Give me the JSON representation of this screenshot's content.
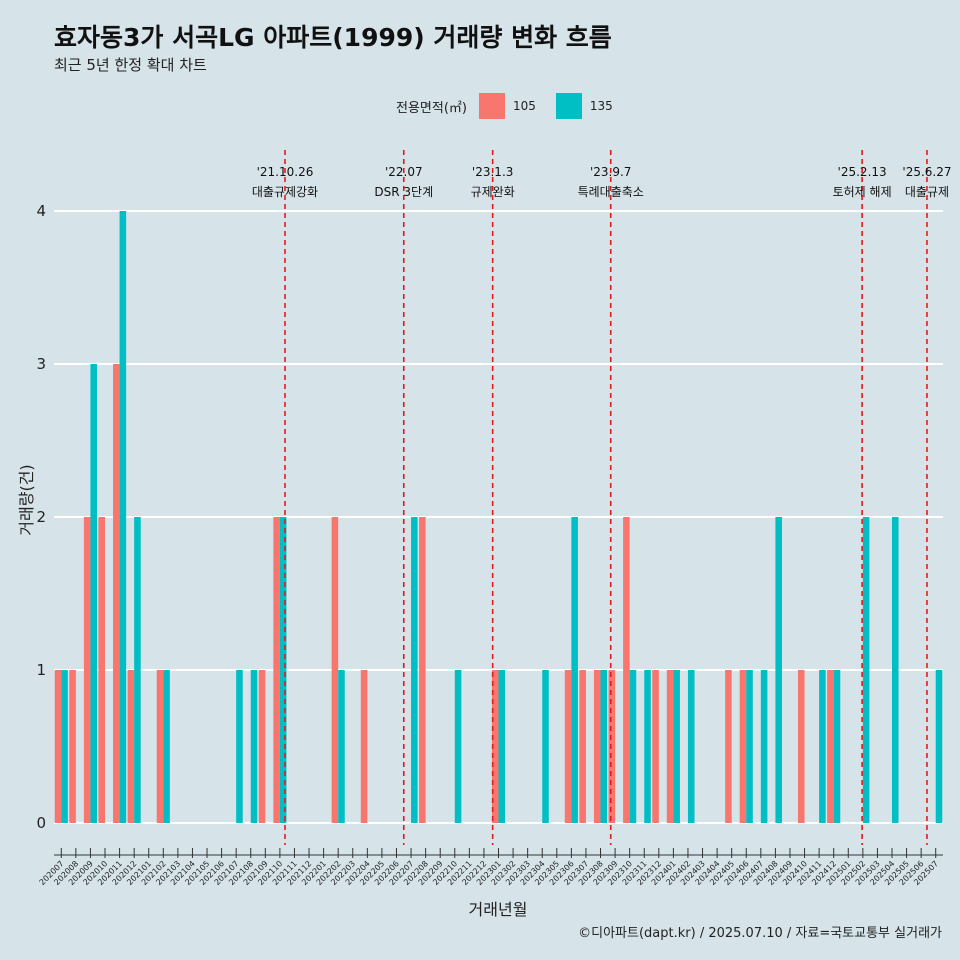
{
  "title": "효자동3가 서곡LG 아파트(1999) 거래량 변화 흐름",
  "subtitle": "최근 5년 한정 확대 차트",
  "caption": "©디아파트(dapt.kr) / 2025.07.10 / 자료=국토교통부 실거래가",
  "legend": {
    "title": "전용면적(㎡)",
    "items": [
      {
        "label": "105",
        "color": "#f8766d"
      },
      {
        "label": "135",
        "color": "#00bfc4"
      }
    ]
  },
  "chart_data": {
    "type": "bar",
    "xlabel": "거래년월",
    "ylabel": "거래량(건)",
    "ylim": [
      -0.2,
      4.3
    ],
    "yticks": [
      0,
      1,
      2,
      3,
      4
    ],
    "grid": true,
    "legend_position": "top",
    "categories": [
      "202007",
      "202008",
      "202009",
      "202010",
      "202011",
      "202012",
      "202101",
      "202102",
      "202103",
      "202104",
      "202105",
      "202106",
      "202107",
      "202108",
      "202109",
      "202110",
      "202111",
      "202112",
      "202201",
      "202202",
      "202203",
      "202204",
      "202205",
      "202206",
      "202207",
      "202208",
      "202209",
      "202210",
      "202211",
      "202212",
      "202301",
      "202302",
      "202303",
      "202304",
      "202305",
      "202306",
      "202307",
      "202308",
      "202309",
      "202310",
      "202311",
      "202312",
      "202401",
      "202402",
      "202403",
      "202404",
      "202405",
      "202406",
      "202407",
      "202408",
      "202409",
      "202410",
      "202411",
      "202412",
      "202501",
      "202502",
      "202503",
      "202504",
      "202505",
      "202506",
      "202507"
    ],
    "series": [
      {
        "name": "105",
        "color": "#f8766d",
        "values": [
          1,
          1,
          2,
          2,
          3,
          1,
          null,
          1,
          null,
          null,
          null,
          null,
          null,
          null,
          1,
          2,
          null,
          null,
          null,
          2,
          null,
          1,
          null,
          null,
          null,
          2,
          null,
          null,
          null,
          null,
          1,
          null,
          null,
          null,
          null,
          1,
          1,
          1,
          1,
          2,
          null,
          1,
          1,
          null,
          null,
          null,
          1,
          1,
          null,
          null,
          null,
          1,
          null,
          1,
          null,
          null,
          null,
          null,
          null,
          null,
          null
        ]
      },
      {
        "name": "135",
        "color": "#00bfc4",
        "values": [
          1,
          null,
          3,
          null,
          4,
          2,
          null,
          1,
          null,
          null,
          null,
          null,
          1,
          1,
          null,
          2,
          null,
          null,
          null,
          1,
          null,
          null,
          null,
          null,
          2,
          null,
          null,
          1,
          null,
          null,
          1,
          null,
          null,
          1,
          null,
          2,
          null,
          1,
          null,
          1,
          1,
          null,
          1,
          1,
          null,
          null,
          null,
          1,
          1,
          2,
          null,
          null,
          1,
          1,
          null,
          2,
          null,
          2,
          null,
          null,
          1
        ]
      }
    ],
    "events": [
      {
        "date_label": "'21.10.26",
        "desc": "대출규제강화",
        "x": "202110",
        "offset": 0.85
      },
      {
        "date_label": "'22.07",
        "desc": "DSR 3단계",
        "x": "202207",
        "offset": 0.0
      },
      {
        "date_label": "'23.1.3",
        "desc": "규제완화",
        "x": "202301",
        "offset": 0.1
      },
      {
        "date_label": "'23.9.7",
        "desc": "특례대출축소",
        "x": "202309",
        "offset": 0.2
      },
      {
        "date_label": "'25.2.13",
        "desc": "토허제 해제",
        "x": "202502",
        "offset": 0.45
      },
      {
        "date_label": "'25.6.27",
        "desc": "대출규제",
        "x": "202506",
        "offset": 0.9
      }
    ]
  }
}
